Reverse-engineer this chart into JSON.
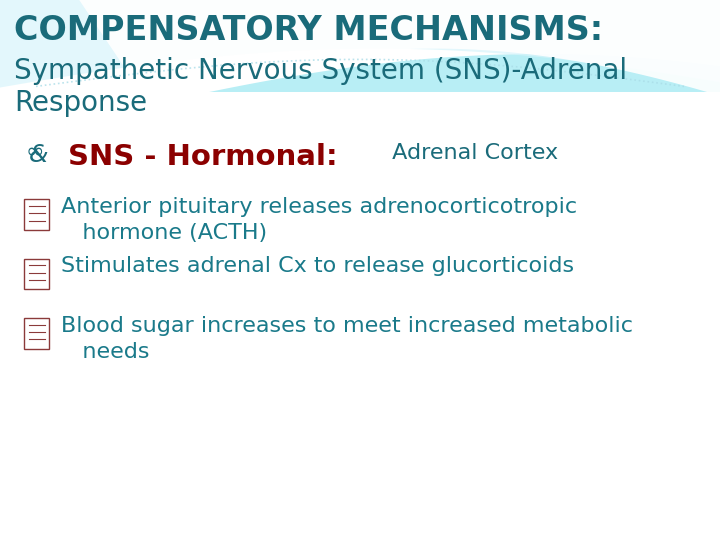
{
  "bg_color": "#f0fafa",
  "bg_lower": "#f5f5f5",
  "title_line1": "COMPENSATORY MECHANISMS:",
  "title_line2": "Sympathetic Nervous System (SNS)-Adrenal",
  "title_line3": "Response",
  "title_color": "#1a6b7a",
  "heading_sns_bold": "SNS - Hormonal:",
  "heading_sns_color": "#8b0000",
  "heading_sns_fontsize": 21,
  "heading_adrenal": " Adrenal Cortex",
  "heading_adrenal_color": "#1a6b7a",
  "heading_adrenal_fontsize": 16,
  "bullet_color": "#1a7a8a",
  "bullet_fontsize": 16,
  "bullet_icon_color": "#8b3a3a",
  "bullets": [
    "Anterior pituitary releases adrenocorticotropic\n   hormone (ACTH)",
    "Stimulates adrenal Cx to release glucorticoids",
    "Blood sugar increases to meet increased metabolic\n   needs"
  ],
  "title_fontsize": 24,
  "title2_fontsize": 20,
  "wave_color_top": "#3cc8d8",
  "wave_color_mid": "#7de0ec",
  "wave_color_light": "#b8f0f8"
}
